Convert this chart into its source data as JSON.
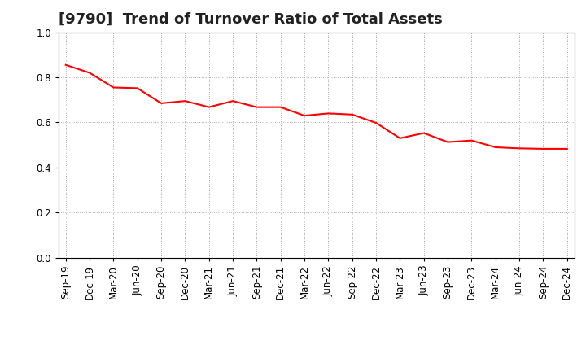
{
  "title": "[9790]  Trend of Turnover Ratio of Total Assets",
  "labels": [
    "Sep-19",
    "Dec-19",
    "Mar-20",
    "Jun-20",
    "Sep-20",
    "Dec-20",
    "Mar-21",
    "Jun-21",
    "Sep-21",
    "Dec-21",
    "Mar-22",
    "Jun-22",
    "Sep-22",
    "Dec-22",
    "Mar-23",
    "Jun-23",
    "Sep-23",
    "Dec-23",
    "Mar-24",
    "Jun-24",
    "Sep-24",
    "Dec-24"
  ],
  "values": [
    0.855,
    0.82,
    0.755,
    0.752,
    0.685,
    0.695,
    0.668,
    0.695,
    0.668,
    0.668,
    0.63,
    0.64,
    0.635,
    0.598,
    0.53,
    0.553,
    0.513,
    0.52,
    0.49,
    0.485,
    0.483,
    0.483
  ],
  "line_color": "#FF0000",
  "line_width": 1.5,
  "ylim": [
    0.0,
    1.0
  ],
  "yticks": [
    0.0,
    0.2,
    0.4,
    0.6,
    0.8,
    1.0
  ],
  "background_color": "#FFFFFF",
  "grid_color": "#AAAAAA",
  "title_fontsize": 13,
  "tick_fontsize": 8.5
}
